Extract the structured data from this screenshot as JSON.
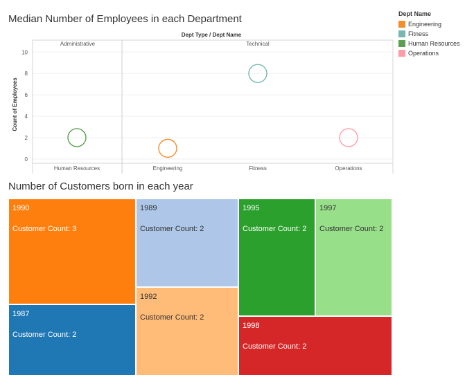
{
  "charts": {
    "scatter": {
      "title": "Median Number of Employees in each Department",
      "header_label": "Dept Type / Dept Name",
      "groups": [
        {
          "label": "Administrative",
          "columns": 1
        },
        {
          "label": "Technical",
          "columns": 3
        }
      ]
    },
    "treemap": {
      "title": "Number of Customers born in each year",
      "count_prefix": "Customer Count:"
    }
  },
  "legend": {
    "title": "Dept Name",
    "items": [
      {
        "label": "Engineering",
        "color": "#f28e2b"
      },
      {
        "label": "Fitness",
        "color": "#76b7b2"
      },
      {
        "label": "Human Resources",
        "color": "#59a14f"
      },
      {
        "label": "Operations",
        "color": "#ff9da7"
      }
    ]
  },
  "chart_data": [
    {
      "type": "scatter",
      "title": "Median Number of Employees in each Department",
      "ylabel": "Count of Employees",
      "ylim": [
        0,
        10
      ],
      "yticks": [
        0,
        2,
        4,
        6,
        8,
        10
      ],
      "categories": [
        "Human Resources",
        "Engineering",
        "Fitness",
        "Operations"
      ],
      "values": [
        2,
        1,
        8,
        2
      ],
      "colors": [
        "#59a14f",
        "#f28e2b",
        "#76b7b2",
        "#ff9da7"
      ],
      "grid": true
    },
    {
      "type": "treemap",
      "title": "Number of Customers born in each year",
      "items": [
        {
          "label": "1990",
          "value": 3,
          "color": "#ff7f0e"
        },
        {
          "label": "1987",
          "value": 2,
          "color": "#1f77b4"
        },
        {
          "label": "1989",
          "value": 2,
          "color": "#aec7e8"
        },
        {
          "label": "1992",
          "value": 2,
          "color": "#ffbb78"
        },
        {
          "label": "1995",
          "value": 2,
          "color": "#2ca02c"
        },
        {
          "label": "1997",
          "value": 2,
          "color": "#98df8a"
        },
        {
          "label": "1998",
          "value": 2,
          "color": "#d62728"
        }
      ]
    }
  ]
}
